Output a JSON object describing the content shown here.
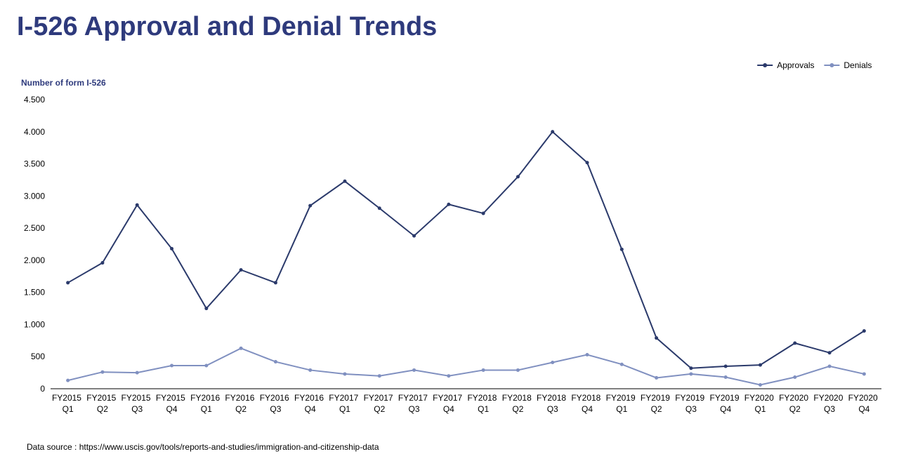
{
  "chart_data": {
    "type": "line",
    "title": "I-526 Approval and Denial Trends",
    "y_label": "Number of form I-526",
    "source": "Data source : https://www.uscis.gov/tools/reports-and-studies/immigration-and-citizenship-data",
    "categories": [
      "FY2015 Q1",
      "FY2015 Q2",
      "FY2015 Q3",
      "FY2015 Q4",
      "FY2016 Q1",
      "FY2016 Q2",
      "FY2016 Q3",
      "FY2016 Q4",
      "FY2017 Q1",
      "FY2017 Q2",
      "FY2017 Q3",
      "FY2017 Q4",
      "FY2018 Q1",
      "FY2018 Q2",
      "FY2018 Q3",
      "FY2018 Q4",
      "FY2019 Q1",
      "FY2019 Q2",
      "FY2019 Q3",
      "FY2019 Q4",
      "FY2020 Q1",
      "FY2020 Q2",
      "FY2020 Q3",
      "FY2020 Q4"
    ],
    "series": [
      {
        "name": "Approvals",
        "color": "#2b3a6b",
        "values": [
          1650,
          1960,
          2860,
          2180,
          1250,
          1850,
          1650,
          2850,
          3230,
          2810,
          2380,
          2870,
          2730,
          3300,
          4000,
          3520,
          2170,
          790,
          320,
          350,
          370,
          710,
          560,
          900
        ]
      },
      {
        "name": "Denials",
        "color": "#8090c0",
        "values": [
          130,
          260,
          250,
          360,
          360,
          630,
          420,
          290,
          230,
          200,
          290,
          200,
          290,
          290,
          410,
          530,
          380,
          170,
          230,
          180,
          60,
          180,
          350,
          230
        ]
      }
    ],
    "ylim": [
      0,
      4500
    ],
    "yticks": [
      0,
      500,
      {
        "value": 1000,
        "label": "1.000"
      },
      {
        "value": 1500,
        "label": "1.500"
      },
      {
        "value": 2000,
        "label": "2.000"
      },
      {
        "value": 2500,
        "label": "2.500"
      },
      {
        "value": 3000,
        "label": "3.000"
      },
      {
        "value": 3500,
        "label": "3.500"
      },
      {
        "value": 4000,
        "label": "4.000"
      },
      {
        "value": 4500,
        "label": "4.500"
      }
    ],
    "grid": false,
    "legend": "top-right"
  }
}
